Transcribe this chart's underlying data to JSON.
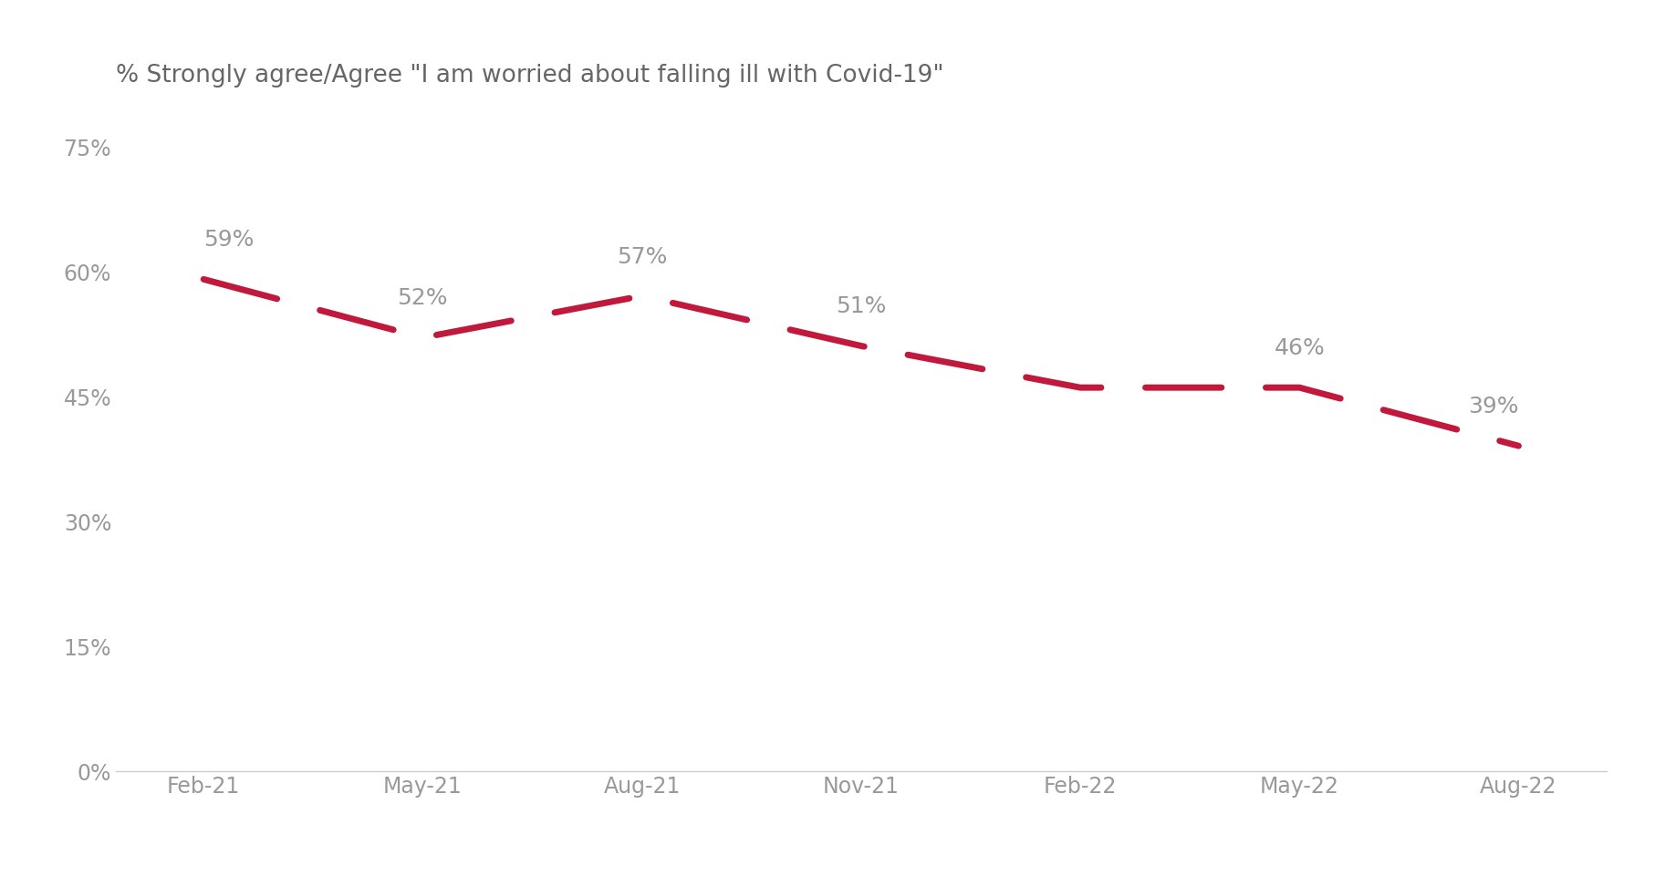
{
  "title": "% Strongly agree/Agree \"I am worried about falling ill with Covid-19\"",
  "x_labels": [
    "Feb-21",
    "May-21",
    "Aug-21",
    "Nov-21",
    "Feb-22",
    "May-22",
    "Aug-22"
  ],
  "y_values": [
    59,
    52,
    57,
    51,
    46,
    46,
    39
  ],
  "annotations": [
    "59%",
    "52%",
    "57%",
    "51%",
    "",
    "46%",
    "39%"
  ],
  "annotation_offsets": [
    3.5,
    3.5,
    3.5,
    3.5,
    0,
    3.5,
    3.5
  ],
  "annotation_ha": [
    "left",
    "center",
    "center",
    "center",
    "center",
    "center",
    "right"
  ],
  "line_color": "#c0193c",
  "label_color": "#999999",
  "title_color": "#666666",
  "background_color": "#ffffff",
  "ylim": [
    0,
    80
  ],
  "yticks": [
    0,
    15,
    30,
    45,
    60,
    75
  ],
  "ytick_labels": [
    "0%",
    "15%",
    "30%",
    "45%",
    "60%",
    "75%"
  ],
  "title_fontsize": 19,
  "label_fontsize": 17,
  "annotation_fontsize": 18,
  "line_width": 5,
  "dash_on": 12,
  "dash_off": 7
}
